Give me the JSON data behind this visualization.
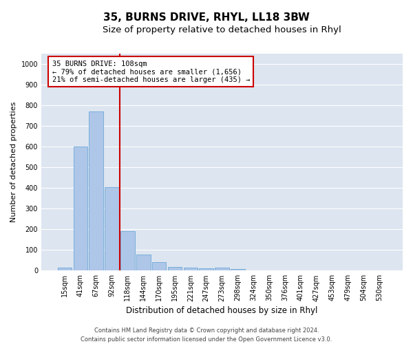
{
  "title": "35, BURNS DRIVE, RHYL, LL18 3BW",
  "subtitle": "Size of property relative to detached houses in Rhyl",
  "xlabel": "Distribution of detached houses by size in Rhyl",
  "ylabel": "Number of detached properties",
  "categories": [
    "15sqm",
    "41sqm",
    "67sqm",
    "92sqm",
    "118sqm",
    "144sqm",
    "170sqm",
    "195sqm",
    "221sqm",
    "247sqm",
    "273sqm",
    "298sqm",
    "324sqm",
    "350sqm",
    "376sqm",
    "401sqm",
    "427sqm",
    "453sqm",
    "479sqm",
    "504sqm",
    "530sqm"
  ],
  "values": [
    15,
    600,
    770,
    405,
    190,
    78,
    40,
    18,
    15,
    10,
    15,
    8,
    0,
    0,
    0,
    0,
    0,
    0,
    0,
    0,
    0
  ],
  "bar_color": "#aec6e8",
  "bar_edge_color": "#5a9fd4",
  "vline_color": "#cc0000",
  "vline_index": 3.5,
  "annotation_text": "35 BURNS DRIVE: 108sqm\n← 79% of detached houses are smaller (1,656)\n21% of semi-detached houses are larger (435) →",
  "annotation_box_facecolor": "#ffffff",
  "annotation_box_edgecolor": "#cc0000",
  "ylim": [
    0,
    1050
  ],
  "yticks": [
    0,
    100,
    200,
    300,
    400,
    500,
    600,
    700,
    800,
    900,
    1000
  ],
  "plot_bg_color": "#dde5f0",
  "fig_bg_color": "#ffffff",
  "grid_color": "#ffffff",
  "footnote": "Contains HM Land Registry data © Crown copyright and database right 2024.\nContains public sector information licensed under the Open Government Licence v3.0.",
  "title_fontsize": 11,
  "subtitle_fontsize": 9.5,
  "xlabel_fontsize": 8.5,
  "ylabel_fontsize": 8,
  "tick_fontsize": 7,
  "annotation_fontsize": 7.5,
  "footnote_fontsize": 6
}
